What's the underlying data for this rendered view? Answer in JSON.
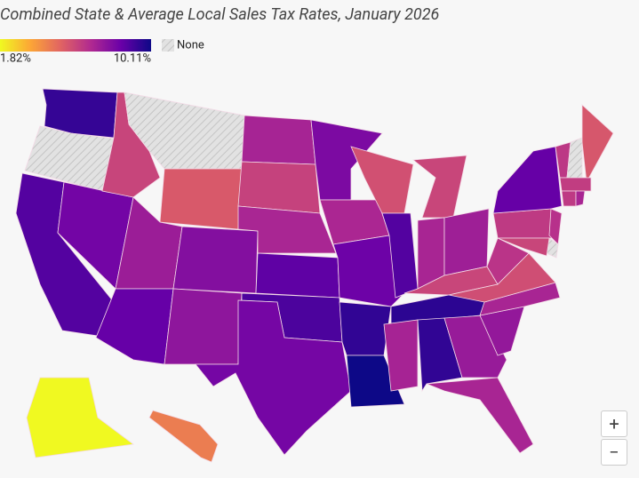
{
  "title": "Combined State & Average Local Sales Tax Rates, January 2026",
  "legend": {
    "min": {
      "value": 1.82,
      "label": "1.82%"
    },
    "max": {
      "value": 10.11,
      "label": "10.11%"
    },
    "none_label": "None"
  },
  "zoom": {
    "in": "+",
    "out": "−"
  },
  "rates": {
    "WA": 9.4,
    "OR": null,
    "CA": 8.85,
    "NV": 8.24,
    "ID": 6.03,
    "MT": null,
    "WY": 5.44,
    "UT": 7.3,
    "CO": 7.86,
    "AZ": 8.52,
    "NM": 7.6,
    "ND": 7.04,
    "SD": 6.1,
    "NE": 6.97,
    "KS": 8.65,
    "OK": 8.99,
    "TX": 8.2,
    "MN": 8.04,
    "IA": 6.94,
    "MO": 8.39,
    "AR": 9.46,
    "LA": 10.11,
    "WI": 5.7,
    "IL": 8.86,
    "MI": 6.0,
    "IN": 7.0,
    "OH": 7.24,
    "KY": 6.0,
    "TN": 9.56,
    "MS": 7.06,
    "AL": 9.46,
    "GA": 7.4,
    "FL": 7.0,
    "SC": 7.5,
    "NC": 7.0,
    "VA": 5.77,
    "WV": 6.5,
    "PA": 6.34,
    "NY": 8.53,
    "VT": 6.4,
    "NH": null,
    "ME": 5.5,
    "MA": 6.25,
    "CT": 6.35,
    "RI": 7.0,
    "NJ": 6.6,
    "DE": null,
    "MD": 6.0,
    "AK": 1.82,
    "HI": 4.5
  }
}
